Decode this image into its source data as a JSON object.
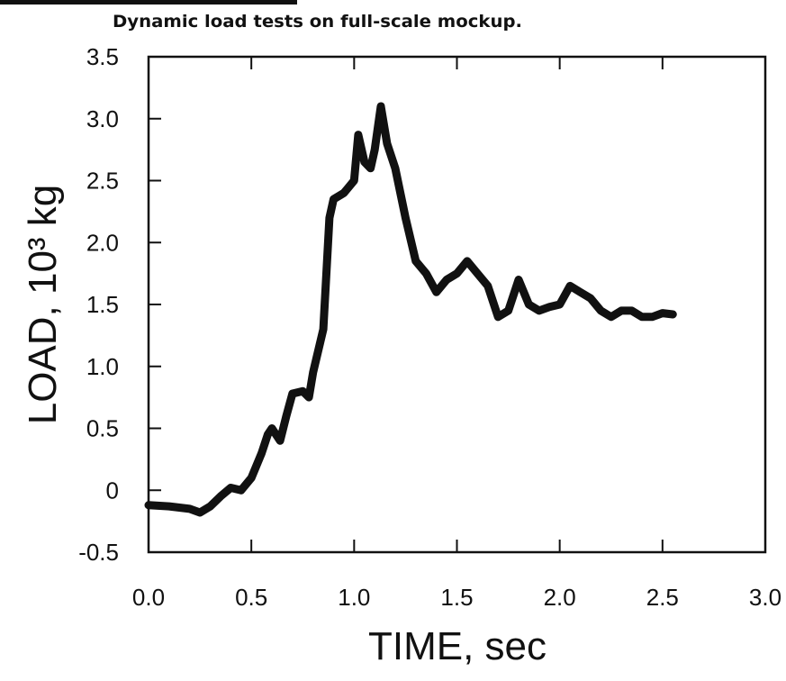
{
  "chart_data": {
    "type": "line",
    "title": "Dynamic load tests on full-scale mockup.",
    "xlabel": "TIME, sec",
    "ylabel": "LOAD, 10³ kg",
    "color": "#111111",
    "xlim": [
      0,
      3
    ],
    "ylim": [
      -0.5,
      3.5
    ],
    "xticks": [
      {
        "value": 0,
        "label": "0.0"
      },
      0.5,
      {
        "value": 1,
        "label": "1.0"
      },
      1.5,
      {
        "value": 2,
        "label": "2.0"
      },
      2.5,
      {
        "value": 3,
        "label": "3.0"
      }
    ],
    "yticks": [
      -0.5,
      0,
      0.5,
      {
        "value": 1,
        "label": "1.0"
      },
      1.5,
      {
        "value": 2,
        "label": "2.0"
      },
      2.5,
      {
        "value": 3,
        "label": "3.0"
      },
      3.5
    ],
    "x": [
      0,
      0.1,
      0.2,
      0.25,
      0.3,
      0.35,
      0.4,
      0.45,
      0.5,
      0.55,
      0.58,
      0.6,
      0.64,
      0.67,
      0.7,
      0.75,
      0.78,
      0.8,
      0.85,
      0.88,
      0.9,
      0.95,
      1.0,
      1.02,
      1.05,
      1.08,
      1.1,
      1.13,
      1.16,
      1.2,
      1.25,
      1.3,
      1.35,
      1.4,
      1.45,
      1.5,
      1.55,
      1.6,
      1.65,
      1.7,
      1.75,
      1.8,
      1.85,
      1.9,
      1.95,
      2.0,
      2.05,
      2.1,
      2.15,
      2.2,
      2.25,
      2.3,
      2.35,
      2.4,
      2.45,
      2.5,
      2.55
    ],
    "values": [
      -0.12,
      -0.13,
      -0.15,
      -0.18,
      -0.13,
      -0.05,
      0.02,
      0.0,
      0.1,
      0.3,
      0.45,
      0.5,
      0.4,
      0.6,
      0.78,
      0.8,
      0.75,
      0.95,
      1.3,
      2.2,
      2.35,
      2.4,
      2.5,
      2.87,
      2.65,
      2.6,
      2.75,
      3.1,
      2.8,
      2.6,
      2.2,
      1.85,
      1.75,
      1.6,
      1.7,
      1.75,
      1.85,
      1.75,
      1.65,
      1.4,
      1.45,
      1.7,
      1.5,
      1.45,
      1.48,
      1.5,
      1.65,
      1.6,
      1.55,
      1.45,
      1.4,
      1.45,
      1.45,
      1.4,
      1.4,
      1.43,
      1.42
    ]
  }
}
